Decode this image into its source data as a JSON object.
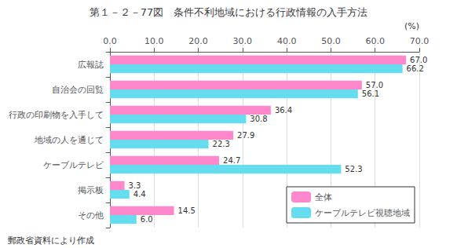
{
  "chart_data": {
    "type": "bar",
    "orientation": "horizontal",
    "title": "第１－２－77図　条件不利地域における行政情報の入手方法",
    "footnote": "郵政省資料により作成",
    "xlabel": "(%)",
    "categories": [
      "広報誌",
      "自治会の回覧",
      "行政の印刷物を入手して",
      "地域の人を通じて",
      "ケーブルテレビ",
      "掲示板",
      "その他"
    ],
    "series": [
      {
        "name": "全体",
        "color": "#FF88CC",
        "values": [
          67.0,
          57.0,
          36.4,
          27.9,
          24.7,
          3.3,
          14.5
        ],
        "value_labels": [
          "67.0",
          "57.0",
          "36.4",
          "27.9",
          "24.7",
          "3.3",
          "14.5"
        ]
      },
      {
        "name": "ケーブルテレビ視聴地域",
        "color": "#66DDEE",
        "values": [
          66.2,
          56.1,
          30.8,
          22.3,
          52.3,
          4.4,
          6.0
        ],
        "value_labels": [
          "66.2",
          "56.1",
          "30.8",
          "22.3",
          "52.3",
          "4.4",
          "6.0"
        ]
      }
    ],
    "xlim": [
      0,
      70.0
    ],
    "xticks": [
      {
        "value": 0,
        "label": "0.0"
      },
      {
        "value": 10,
        "label": "10.0"
      },
      {
        "value": 20,
        "label": "20.0"
      },
      {
        "value": 30,
        "label": "30.0"
      },
      {
        "value": 40,
        "label": "40.0"
      },
      {
        "value": 50,
        "label": "50.0"
      },
      {
        "value": 60,
        "label": "60.0"
      },
      {
        "value": 70,
        "label": "70.0"
      }
    ],
    "grid": true,
    "legend": "lower right",
    "data_labels": true
  }
}
